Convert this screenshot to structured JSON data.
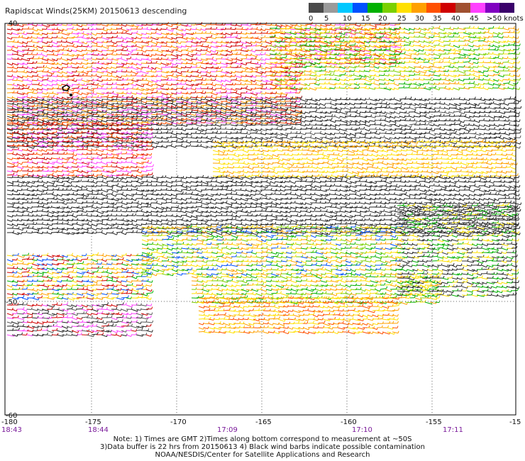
{
  "title": "Rapidscat Winds(25KM) 20150613 descending",
  "colorbar": {
    "colors": [
      "#4a4a4a",
      "#9a9a9a",
      "#00c8ff",
      "#0050ff",
      "#00b000",
      "#7ad000",
      "#ffe000",
      "#ffa000",
      "#ff5000",
      "#d00000",
      "#a05030",
      "#ff40ff",
      "#8000c0",
      "#3a006a"
    ],
    "labels": [
      "0",
      "5",
      "10",
      "15",
      "20",
      "25",
      "30",
      "35",
      "40",
      "45",
      ">50 knots"
    ]
  },
  "axes": {
    "lon_ticks": [
      "-180",
      "-175",
      "-170",
      "-165",
      "-160",
      "-155",
      "-15"
    ],
    "lat_top": "-40",
    "lat_bottom": "-60",
    "lat_mid": "-50"
  },
  "times": [
    "18:43",
    "18:44",
    "17:09",
    "17:10",
    "17:11"
  ],
  "notes": [
    "Note: 1) Times are GMT 2)Times along bottom correspond to measurement at ~50S",
    "3)Data buffer is 22 hrs from 20150613 4) Black wind barbs indicate possible contamination",
    "NOAA/NESDIS/Center for Satellite Applications and Research"
  ],
  "swath_bands": [
    {
      "color": "#d00000"
    },
    {
      "color": "#ff5000"
    },
    {
      "color": "#ffe000"
    },
    {
      "color": "#222222"
    },
    {
      "color": "#00b000"
    },
    {
      "color": "#ffa000"
    }
  ]
}
